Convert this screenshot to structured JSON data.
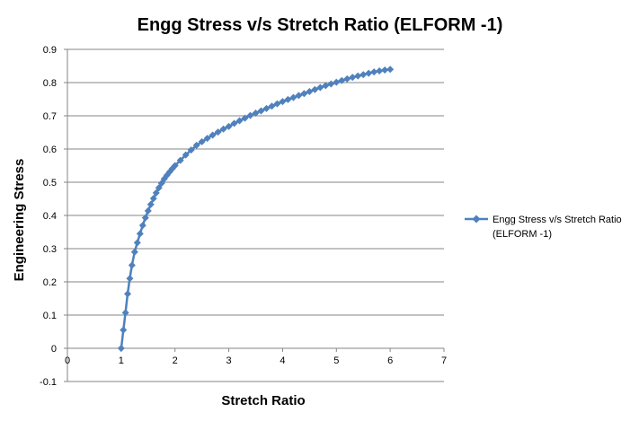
{
  "chart_data": {
    "type": "scatter",
    "title": "Engg Stress v/s Stretch Ratio (ELFORM -1)",
    "xlabel": "Stretch Ratio",
    "ylabel": "Engineering Stress",
    "xlim": [
      0,
      7
    ],
    "ylim": [
      -0.1,
      0.9
    ],
    "xticks": [
      0,
      1,
      2,
      3,
      4,
      5,
      6,
      7
    ],
    "yticks": [
      -0.1,
      0,
      0.1,
      0.2,
      0.3,
      0.4,
      0.5,
      0.6,
      0.7,
      0.8,
      0.9
    ],
    "grid": "horizontal",
    "legend": "right",
    "marker": "diamond",
    "series": [
      {
        "name": "Engg Stress v/s Stretch Ratio (ELFORM -1)",
        "color": "#4F81BD",
        "x": [
          1.0,
          1.04,
          1.08,
          1.12,
          1.16,
          1.2,
          1.25,
          1.3,
          1.35,
          1.4,
          1.45,
          1.5,
          1.55,
          1.6,
          1.65,
          1.7,
          1.75,
          1.8,
          1.85,
          1.9,
          1.95,
          2.0,
          2.1,
          2.2,
          2.3,
          2.4,
          2.5,
          2.6,
          2.7,
          2.8,
          2.9,
          3.0,
          3.1,
          3.2,
          3.3,
          3.4,
          3.5,
          3.6,
          3.7,
          3.8,
          3.9,
          4.0,
          4.1,
          4.2,
          4.3,
          4.4,
          4.5,
          4.6,
          4.7,
          4.8,
          4.9,
          5.0,
          5.1,
          5.2,
          5.3,
          5.4,
          5.5,
          5.6,
          5.7,
          5.8,
          5.9,
          6.0
        ],
        "y": [
          0.0,
          0.055,
          0.107,
          0.164,
          0.21,
          0.25,
          0.29,
          0.318,
          0.345,
          0.37,
          0.393,
          0.414,
          0.433,
          0.451,
          0.468,
          0.483,
          0.497,
          0.51,
          0.521,
          0.531,
          0.541,
          0.55,
          0.566,
          0.582,
          0.597,
          0.611,
          0.622,
          0.632,
          0.642,
          0.651,
          0.66,
          0.668,
          0.677,
          0.685,
          0.693,
          0.701,
          0.708,
          0.715,
          0.722,
          0.729,
          0.736,
          0.743,
          0.749,
          0.755,
          0.761,
          0.767,
          0.773,
          0.779,
          0.785,
          0.791,
          0.796,
          0.801,
          0.806,
          0.811,
          0.816,
          0.82,
          0.824,
          0.828,
          0.832,
          0.835,
          0.838,
          0.84
        ]
      }
    ]
  },
  "legend_lines": [
    "Engg Stress v/s Stretch Ratio",
    "(ELFORM -1)"
  ]
}
